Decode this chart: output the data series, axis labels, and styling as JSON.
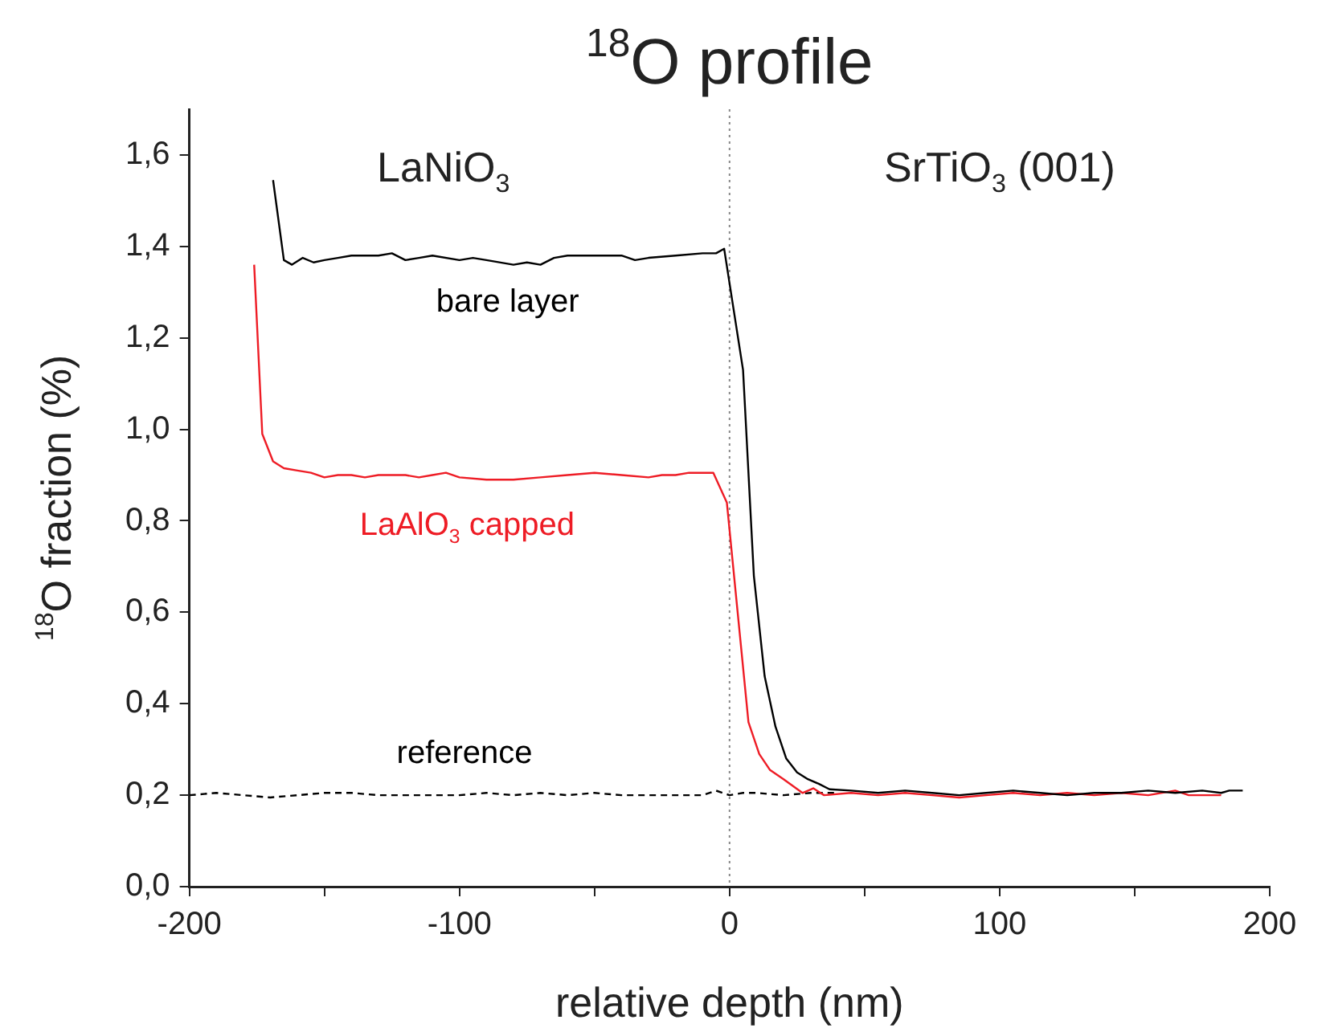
{
  "chart_data": {
    "type": "line",
    "title": "$^{18}$O profile",
    "xlabel": "relative depth (nm)",
    "ylabel": "$^{18}$O fraction (%)",
    "xlim": [
      -200,
      200
    ],
    "xticks": [
      -200,
      {
        "value": -150,
        "label": null
      },
      -100,
      {
        "value": -50,
        "label": null
      },
      0,
      {
        "value": 50,
        "label": null
      },
      100,
      {
        "value": 150,
        "label": null
      },
      200
    ],
    "ylim": [
      0,
      1.7
    ],
    "yticks": [
      {
        "value": 0,
        "label": "0,0"
      },
      {
        "value": 0.2,
        "label": "0,2"
      },
      {
        "value": 0.4,
        "label": "0,4"
      },
      {
        "value": 0.6,
        "label": "0,6"
      },
      {
        "value": 0.8,
        "label": "0,8"
      },
      {
        "value": 1.0,
        "label": "1,0"
      },
      {
        "value": 1.2,
        "label": "1,2"
      },
      {
        "value": 1.4,
        "label": "1,4"
      },
      {
        "value": 1.6,
        "label": "1,6"
      }
    ],
    "grid": false,
    "legend": false,
    "marker": "none",
    "annotations": [
      "LaNiO$_{3}$",
      "SrTiO$_{3}$ (001)"
    ],
    "ref_lines": [
      {
        "axis": "x",
        "value": 0,
        "color": "#888888",
        "line_style": "dotted"
      }
    ],
    "series": [
      {
        "name": "bare layer",
        "color": "#000000",
        "line_style": "solid",
        "x": [
          -169,
          -165,
          -162,
          -158,
          -154,
          -150,
          -145,
          -140,
          -130,
          -125,
          -120,
          -115,
          -110,
          -100,
          -95,
          -90,
          -80,
          -75,
          -70,
          -65,
          -60,
          -50,
          -40,
          -35,
          -30,
          -20,
          -10,
          -5,
          -2,
          5,
          9,
          13,
          17,
          21,
          25,
          29,
          33,
          37,
          45,
          55,
          65,
          75,
          85,
          95,
          105,
          115,
          125,
          135,
          145,
          155,
          165,
          175,
          182,
          185,
          190
        ],
        "values": [
          1.545,
          1.37,
          1.36,
          1.375,
          1.365,
          1.37,
          1.375,
          1.38,
          1.38,
          1.385,
          1.37,
          1.375,
          1.38,
          1.37,
          1.375,
          1.37,
          1.36,
          1.365,
          1.36,
          1.375,
          1.38,
          1.38,
          1.38,
          1.37,
          1.375,
          1.38,
          1.385,
          1.385,
          1.395,
          1.13,
          0.68,
          0.46,
          0.35,
          0.28,
          0.25,
          0.235,
          0.225,
          0.213,
          0.21,
          0.205,
          0.21,
          0.205,
          0.2,
          0.205,
          0.21,
          0.205,
          0.2,
          0.205,
          0.205,
          0.21,
          0.205,
          0.21,
          0.205,
          0.21,
          0.21
        ]
      },
      {
        "name": "LaAlO$_{3}$ capped",
        "color": "#ee1c25",
        "line_style": "solid",
        "x": [
          -176,
          -173,
          -169,
          -165,
          -160,
          -155,
          -150,
          -145,
          -140,
          -135,
          -130,
          -125,
          -120,
          -115,
          -110,
          -105,
          -100,
          -90,
          -80,
          -70,
          -60,
          -50,
          -40,
          -30,
          -25,
          -20,
          -15,
          -10,
          -6,
          -1,
          3,
          7,
          11,
          15,
          20,
          27,
          31,
          35,
          45,
          55,
          65,
          75,
          85,
          95,
          105,
          115,
          125,
          135,
          145,
          155,
          165,
          170,
          175,
          182
        ],
        "values": [
          1.36,
          0.99,
          0.93,
          0.915,
          0.91,
          0.905,
          0.895,
          0.9,
          0.9,
          0.895,
          0.9,
          0.9,
          0.9,
          0.895,
          0.9,
          0.905,
          0.895,
          0.89,
          0.89,
          0.895,
          0.9,
          0.905,
          0.9,
          0.895,
          0.9,
          0.9,
          0.905,
          0.905,
          0.905,
          0.84,
          0.6,
          0.36,
          0.29,
          0.255,
          0.235,
          0.205,
          0.215,
          0.2,
          0.205,
          0.2,
          0.205,
          0.2,
          0.195,
          0.2,
          0.205,
          0.2,
          0.205,
          0.2,
          0.205,
          0.2,
          0.21,
          0.2,
          0.2,
          0.2
        ]
      },
      {
        "name": "reference",
        "color": "#000000",
        "line_style": "dashed",
        "x": [
          -200,
          -190,
          -180,
          -170,
          -160,
          -150,
          -140,
          -130,
          -120,
          -110,
          -100,
          -90,
          -80,
          -70,
          -60,
          -50,
          -40,
          -30,
          -20,
          -10,
          -5,
          0,
          5,
          10,
          20,
          30,
          40
        ],
        "values": [
          0.2,
          0.205,
          0.2,
          0.195,
          0.2,
          0.205,
          0.205,
          0.2,
          0.2,
          0.2,
          0.2,
          0.205,
          0.2,
          0.205,
          0.2,
          0.205,
          0.2,
          0.2,
          0.2,
          0.2,
          0.21,
          0.2,
          0.205,
          0.205,
          0.2,
          0.205,
          0.205
        ]
      }
    ]
  }
}
